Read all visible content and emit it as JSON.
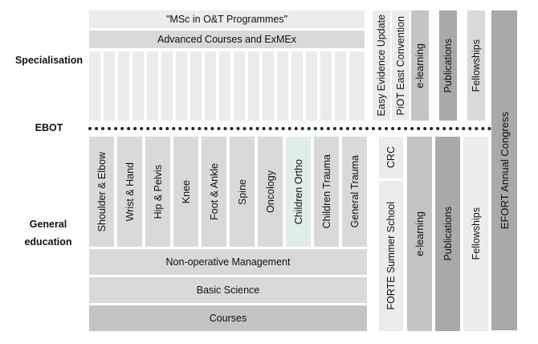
{
  "labels": {
    "specialisation": "Specialisation",
    "ebot": "EBOT",
    "general_education": "General education"
  },
  "top": {
    "msc": "\"MSc in O&T Programmes\"",
    "advanced": "Advanced Courses and ExMEx",
    "easy_evidence": "Easy Evidence Update",
    "piot": "PiOT East Convention",
    "elearning": "e-learning",
    "publications": "Publications",
    "fellowships": "Fellowships"
  },
  "annual_congress": "EFORT Annual Congress",
  "bottom": {
    "specialties": [
      "Shoulder & Elbow",
      "Wrist & Hand",
      "Hip & Pelvis",
      "Knee",
      "Foot & Ankle",
      "Spine",
      "Oncology",
      "Children Ortho",
      "Children Trauma",
      "General Trauma"
    ],
    "non_operative": "Non-operative Management",
    "basic_science": "Basic Science",
    "courses": "Courses",
    "crc": "CRC",
    "forte": "FORTE Summer School",
    "elearning": "e-learning",
    "publications": "Publications",
    "fellowships": "Fellowships"
  },
  "colors": {
    "lightest": "#ececec",
    "light": "#d9d9d9",
    "medium": "#c4c4c4",
    "dark": "#a9a9a9",
    "children_ortho": "#dfeee8"
  }
}
